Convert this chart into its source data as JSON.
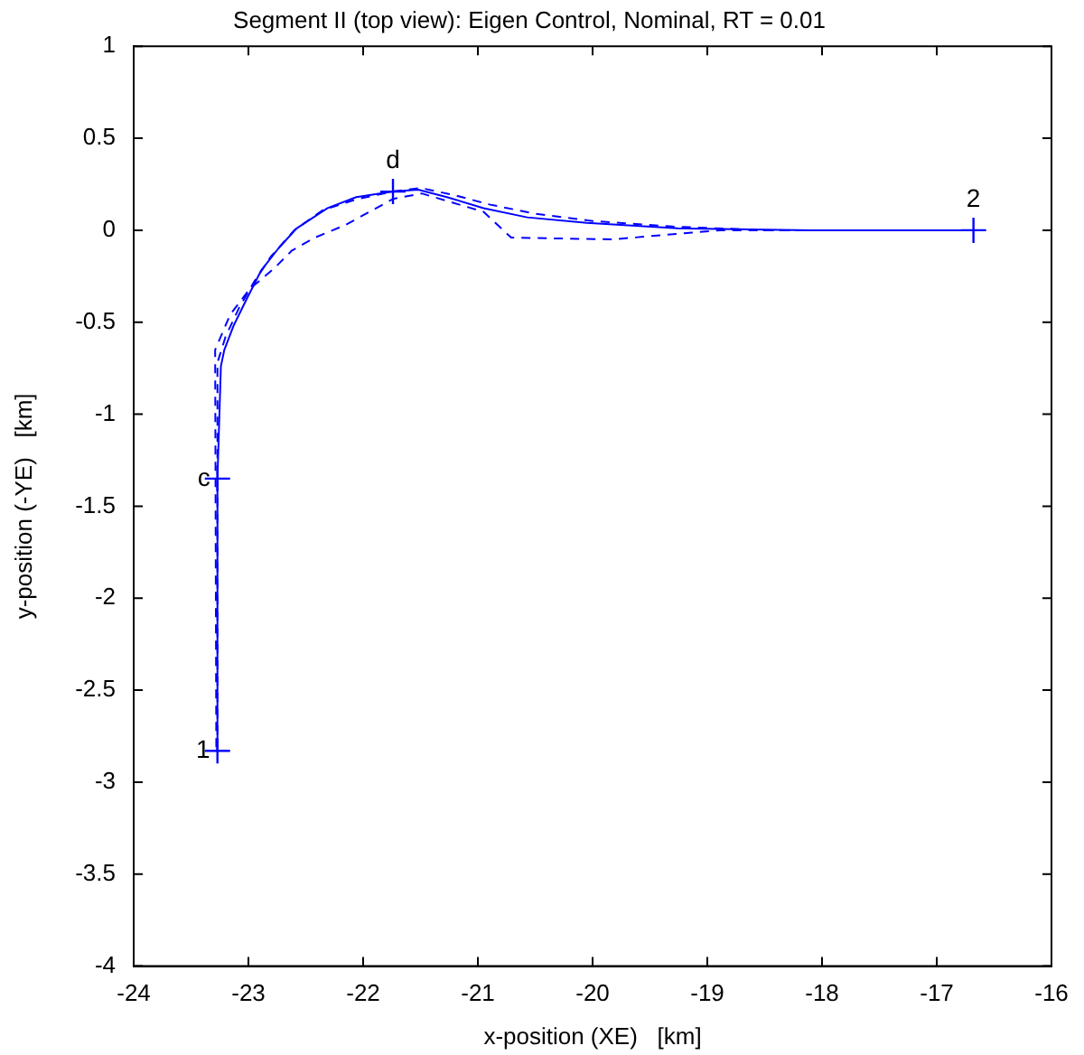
{
  "chart_data": {
    "type": "line",
    "title": "Segment II (top view): Eigen Control, Nominal, RT = 0.01",
    "xlabel": "x-position (XE)   [km]",
    "ylabel": "y-position (-YE)   [km]",
    "xlim": [
      -24,
      -16
    ],
    "xticks": [
      -24,
      -23,
      -22,
      -21,
      -20,
      -19,
      -18,
      -17,
      -16
    ],
    "ylim": [
      -4,
      1
    ],
    "yticks": [
      -4,
      -3.5,
      -3,
      -2.5,
      -2,
      -1.5,
      -1,
      -0.5,
      0,
      0.5,
      1
    ],
    "grid": false,
    "legend": false,
    "series": [
      {
        "color": "#0000ff",
        "line_style": "solid",
        "marker": "none",
        "x": [
          -23.27,
          -23.27,
          -23.24,
          -23.21,
          -23.13,
          -23.02,
          -22.89,
          -22.74,
          -22.58,
          -22.31,
          -22.06,
          -21.74,
          -21.52,
          -21.27,
          -20.95,
          -20.57,
          -20.05,
          -19.26,
          -18.09,
          -16.68
        ],
        "values": [
          -2.83,
          -1.35,
          -0.74,
          -0.65,
          -0.52,
          -0.38,
          -0.22,
          -0.1,
          0.01,
          0.12,
          0.18,
          0.21,
          0.22,
          0.18,
          0.12,
          0.07,
          0.04,
          0.01,
          0,
          0
        ]
      },
      {
        "color": "#0000ff",
        "line_style": "dashed",
        "marker": "none",
        "x": [
          -23.27,
          -23.27,
          -23.2,
          -23.08,
          -22.95,
          -22.8,
          -22.6,
          -22.35,
          -22.05,
          -21.74,
          -21.5,
          -21.2,
          -20.9,
          -20.5,
          -20,
          -19.3,
          -18.5,
          -16.68
        ],
        "values": [
          -2.83,
          -0.72,
          -0.58,
          -0.42,
          -0.28,
          -0.14,
          0,
          0.11,
          0.17,
          0.21,
          0.23,
          0.19,
          0.14,
          0.09,
          0.05,
          0.02,
          0,
          0
        ]
      },
      {
        "color": "#0000ff",
        "line_style": "dashed",
        "marker": "none",
        "x": [
          -23.28,
          -23.29,
          -23.16,
          -22.99,
          -22.78,
          -22.62,
          -22.42,
          -22.15,
          -21.74,
          -21.49,
          -20.95,
          -20.71,
          -19.83,
          -19.27,
          -18.88,
          -16.72
        ],
        "values": [
          -2.81,
          -0.65,
          -0.46,
          -0.32,
          -0.21,
          -0.11,
          -0.04,
          0.03,
          0.17,
          0.2,
          0.1,
          -0.04,
          -0.05,
          -0.02,
          0,
          0
        ]
      },
      {
        "type": "scatter",
        "color": "#0000ff",
        "marker": "cross",
        "x": [
          -23.27,
          -23.27,
          -21.74,
          -16.68
        ],
        "values": [
          -2.83,
          -1.35,
          0.21,
          0
        ]
      }
    ],
    "annotations": [
      {
        "text": "1",
        "x": -23.27,
        "y": -2.83
      },
      {
        "text": "c",
        "x": -23.27,
        "y": -1.35
      },
      {
        "text": "d",
        "x": -21.74,
        "y": 0.21
      },
      {
        "text": "2",
        "x": -16.68,
        "y": 0
      }
    ]
  }
}
